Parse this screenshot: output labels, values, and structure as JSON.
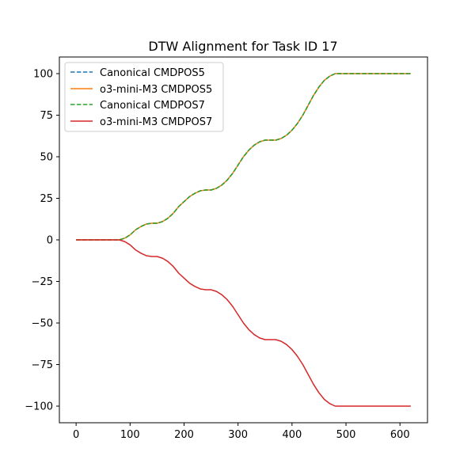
{
  "chart_data": {
    "type": "line",
    "title": "DTW Alignment for Task ID 17",
    "xlabel": "",
    "ylabel": "",
    "xlim": [
      -31,
      651
    ],
    "ylim": [
      -110,
      110
    ],
    "x_ticks": [
      0,
      100,
      200,
      300,
      400,
      500,
      600
    ],
    "y_ticks": [
      -100,
      -75,
      -50,
      -25,
      0,
      25,
      50,
      75,
      100
    ],
    "x_tick_labels": [
      "0",
      "100",
      "200",
      "300",
      "400",
      "500",
      "600"
    ],
    "y_tick_labels": [
      "−100",
      "−75",
      "−50",
      "−25",
      "0",
      "25",
      "50",
      "75",
      "100"
    ],
    "grid": false,
    "legend_position": "upper-left",
    "series": [
      {
        "name": "Canonical CMDPOS5",
        "color": "#1f77b4",
        "style": "dashed",
        "x": [
          0,
          80,
          90,
          100,
          110,
          120,
          130,
          140,
          150,
          160,
          170,
          180,
          190,
          200,
          210,
          220,
          230,
          240,
          250,
          260,
          270,
          280,
          290,
          300,
          310,
          320,
          330,
          340,
          350,
          360,
          370,
          380,
          390,
          400,
          410,
          420,
          430,
          440,
          450,
          460,
          470,
          480,
          490,
          500,
          510,
          520,
          530,
          540,
          620
        ],
        "y": [
          0,
          0,
          1,
          3,
          6,
          8,
          9.5,
          10,
          10,
          11,
          13,
          16,
          20,
          23,
          26,
          28,
          29.5,
          30,
          30,
          31,
          33,
          36,
          40,
          45,
          50,
          54,
          57,
          59,
          60,
          60,
          60,
          61,
          63,
          66,
          70,
          75,
          81,
          87,
          92,
          96,
          98.5,
          100,
          100,
          100,
          100,
          100,
          100,
          100,
          100
        ]
      },
      {
        "name": "o3-mini-M3 CMDPOS5",
        "color": "#ff7f0e",
        "style": "solid",
        "x": [
          0,
          80,
          90,
          100,
          110,
          120,
          130,
          140,
          150,
          160,
          170,
          180,
          190,
          200,
          210,
          220,
          230,
          240,
          250,
          260,
          270,
          280,
          290,
          300,
          310,
          320,
          330,
          340,
          350,
          360,
          370,
          380,
          390,
          400,
          410,
          420,
          430,
          440,
          450,
          460,
          470,
          480,
          490,
          500,
          510,
          520,
          530,
          540,
          620
        ],
        "y": [
          0,
          0,
          1,
          3,
          6,
          8,
          9.5,
          10,
          10,
          11,
          13,
          16,
          20,
          23,
          26,
          28,
          29.5,
          30,
          30,
          31,
          33,
          36,
          40,
          45,
          50,
          54,
          57,
          59,
          60,
          60,
          60,
          61,
          63,
          66,
          70,
          75,
          81,
          87,
          92,
          96,
          98.5,
          100,
          100,
          100,
          100,
          100,
          100,
          100,
          100
        ]
      },
      {
        "name": "Canonical CMDPOS7",
        "color": "#2ca02c",
        "style": "dashed",
        "x": [
          0,
          80,
          90,
          100,
          110,
          120,
          130,
          140,
          150,
          160,
          170,
          180,
          190,
          200,
          210,
          220,
          230,
          240,
          250,
          260,
          270,
          280,
          290,
          300,
          310,
          320,
          330,
          340,
          350,
          360,
          370,
          380,
          390,
          400,
          410,
          420,
          430,
          440,
          450,
          460,
          470,
          480,
          490,
          500,
          510,
          520,
          530,
          540,
          620
        ],
        "y": [
          0,
          0,
          1,
          3,
          6,
          8,
          9.5,
          10,
          10,
          11,
          13,
          16,
          20,
          23,
          26,
          28,
          29.5,
          30,
          30,
          31,
          33,
          36,
          40,
          45,
          50,
          54,
          57,
          59,
          60,
          60,
          60,
          61,
          63,
          66,
          70,
          75,
          81,
          87,
          92,
          96,
          98.5,
          100,
          100,
          100,
          100,
          100,
          100,
          100,
          100
        ]
      },
      {
        "name": "o3-mini-M3 CMDPOS7",
        "color": "#d62728",
        "style": "solid",
        "x": [
          0,
          80,
          90,
          100,
          110,
          120,
          130,
          140,
          150,
          160,
          170,
          180,
          190,
          200,
          210,
          220,
          230,
          240,
          250,
          260,
          270,
          280,
          290,
          300,
          310,
          320,
          330,
          340,
          350,
          360,
          370,
          380,
          390,
          400,
          410,
          420,
          430,
          440,
          450,
          460,
          470,
          480,
          490,
          500,
          510,
          520,
          530,
          540,
          620
        ],
        "y": [
          0,
          0,
          -1,
          -3,
          -6,
          -8,
          -9.5,
          -10,
          -10,
          -11,
          -13,
          -16,
          -20,
          -23,
          -26,
          -28,
          -29.5,
          -30,
          -30,
          -31,
          -33,
          -36,
          -40,
          -45,
          -50,
          -54,
          -57,
          -59,
          -60,
          -60,
          -60,
          -61,
          -63,
          -66,
          -70,
          -75,
          -81,
          -87,
          -92,
          -96,
          -98.5,
          -100,
          -100,
          -100,
          -100,
          -100,
          -100,
          -100,
          -100
        ]
      }
    ]
  }
}
